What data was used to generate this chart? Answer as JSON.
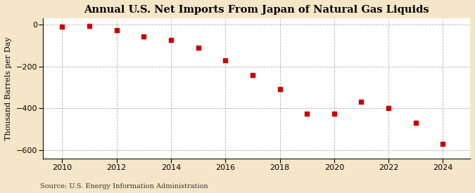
{
  "title": "Annual U.S. Net Imports From Japan of Natural Gas Liquids",
  "ylabel": "Thousand Barrels per Day",
  "source": "Source: U.S. Energy Information Administration",
  "figure_bg": "#f5e6c8",
  "axes_bg": "#ffffff",
  "marker_color": "#cc0000",
  "grid_color": "#aaaaaa",
  "years": [
    2010,
    2011,
    2012,
    2013,
    2014,
    2015,
    2016,
    2017,
    2018,
    2019,
    2020,
    2021,
    2022,
    2023,
    2024
  ],
  "values": [
    -8,
    -5,
    -25,
    -55,
    -75,
    -110,
    -170,
    -240,
    -310,
    -425,
    -425,
    -370,
    -400,
    -470,
    -570
  ],
  "xlim": [
    2009.3,
    2025.0
  ],
  "ylim": [
    -640,
    30
  ],
  "yticks": [
    0,
    -200,
    -400,
    -600
  ],
  "xticks": [
    2010,
    2012,
    2014,
    2016,
    2018,
    2020,
    2022,
    2024
  ],
  "title_fontsize": 10.5,
  "tick_fontsize": 8,
  "ylabel_fontsize": 8,
  "source_fontsize": 7
}
